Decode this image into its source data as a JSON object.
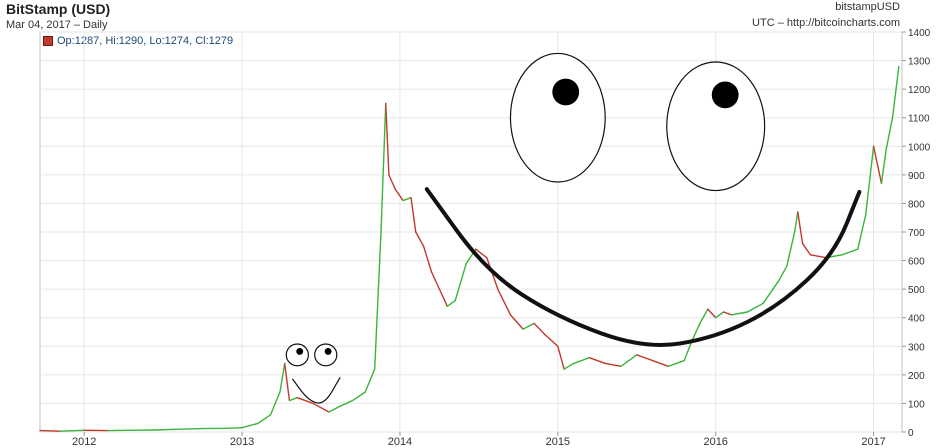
{
  "header": {
    "title": "BitStamp (USD)",
    "subtitle": "Mar 04, 2017 – Daily",
    "ticker": "bitstampUSD",
    "source": "UTC – http://bitcoincharts.com"
  },
  "legend": {
    "text": "Op:1287, Hi:1290, Lo:1274, Cl:1279",
    "swatch_color": "#c0392b"
  },
  "chart_data": {
    "type": "line",
    "title": "BitStamp (USD)",
    "subtitle": "Mar 04, 2017 – Daily",
    "xlabel": "",
    "ylabel": "",
    "xlim": [
      2011.72,
      2017.18
    ],
    "ylim": [
      0,
      1400
    ],
    "y_axis_side": "right",
    "grid": true,
    "x_ticks": [
      {
        "label": "2012",
        "value": 2012.0
      },
      {
        "label": "2013",
        "value": 2013.0
      },
      {
        "label": "2014",
        "value": 2014.0
      },
      {
        "label": "2015",
        "value": 2015.0
      },
      {
        "label": "2016",
        "value": 2016.0
      },
      {
        "label": "2017",
        "value": 2017.0
      }
    ],
    "y_ticks": [
      0,
      100,
      200,
      300,
      400,
      500,
      600,
      700,
      800,
      900,
      1000,
      1100,
      1200,
      1300,
      1400
    ],
    "colors": {
      "up": "#3ab53a",
      "down": "#c0392b"
    },
    "series": [
      {
        "x": [
          2011.72,
          2011.85,
          2012.0,
          2012.15,
          2012.3,
          2012.45,
          2012.6,
          2012.75,
          2012.9,
          2013.0,
          2013.1,
          2013.18,
          2013.24,
          2013.27,
          2013.3,
          2013.35,
          2013.45,
          2013.55,
          2013.62,
          2013.7,
          2013.78,
          2013.84,
          2013.88,
          2013.91,
          2013.93,
          2013.97,
          2014.02,
          2014.07,
          2014.1,
          2014.15,
          2014.2,
          2014.25,
          2014.3,
          2014.35,
          2014.42,
          2014.48,
          2014.55,
          2014.62,
          2014.7,
          2014.78,
          2014.85,
          2014.92,
          2015.0,
          2015.04,
          2015.1,
          2015.2,
          2015.3,
          2015.4,
          2015.5,
          2015.6,
          2015.7,
          2015.8,
          2015.85,
          2015.9,
          2015.95,
          2016.0,
          2016.05,
          2016.1,
          2016.2,
          2016.3,
          2016.4,
          2016.45,
          2016.5,
          2016.52,
          2016.55,
          2016.6,
          2016.7,
          2016.8,
          2016.9,
          2016.95,
          2017.0,
          2017.05,
          2017.08,
          2017.12,
          2017.16
        ],
        "y": [
          5,
          3,
          6,
          5,
          6,
          7,
          10,
          12,
          13,
          15,
          30,
          60,
          140,
          240,
          110,
          120,
          100,
          70,
          90,
          110,
          140,
          220,
          700,
          1150,
          900,
          850,
          810,
          820,
          700,
          650,
          560,
          500,
          440,
          460,
          590,
          640,
          610,
          500,
          410,
          360,
          380,
          340,
          300,
          220,
          240,
          260,
          240,
          230,
          270,
          250,
          230,
          250,
          320,
          380,
          430,
          400,
          420,
          410,
          420,
          450,
          530,
          580,
          700,
          770,
          660,
          620,
          610,
          620,
          640,
          760,
          1000,
          870,
          990,
          1100,
          1279
        ]
      }
    ],
    "annotations": [
      {
        "type": "eye",
        "cx": 2013.35,
        "cy": 270,
        "rx": 0.07,
        "ry": 38,
        "pupil_dx": 0.015,
        "pupil_dy": 12,
        "pupil_r": 0.022
      },
      {
        "type": "eye",
        "cx": 2013.53,
        "cy": 270,
        "rx": 0.07,
        "ry": 38,
        "pupil_dx": 0.015,
        "pupil_dy": 12,
        "pupil_r": 0.022
      },
      {
        "type": "eye",
        "cx": 2015.0,
        "cy": 1100,
        "rx": 0.3,
        "ry": 225,
        "pupil_dx": 0.05,
        "pupil_dy": 90,
        "pupil_r": 0.085
      },
      {
        "type": "eye",
        "cx": 2016.0,
        "cy": 1070,
        "rx": 0.31,
        "ry": 225,
        "pupil_dx": 0.06,
        "pupil_dy": 110,
        "pupil_r": 0.085
      }
    ],
    "smiles": [
      {
        "x": [
          2013.32,
          2013.42,
          2013.52,
          2013.62
        ],
        "y": [
          185,
          110,
          95,
          190
        ],
        "stroke": 1.2
      },
      {
        "x": [
          2014.17,
          2014.55,
          2015.0,
          2015.55,
          2016.0,
          2016.4,
          2016.75,
          2016.91
        ],
        "y": [
          850,
          560,
          400,
          290,
          330,
          440,
          620,
          840
        ],
        "stroke": 4
      }
    ]
  }
}
